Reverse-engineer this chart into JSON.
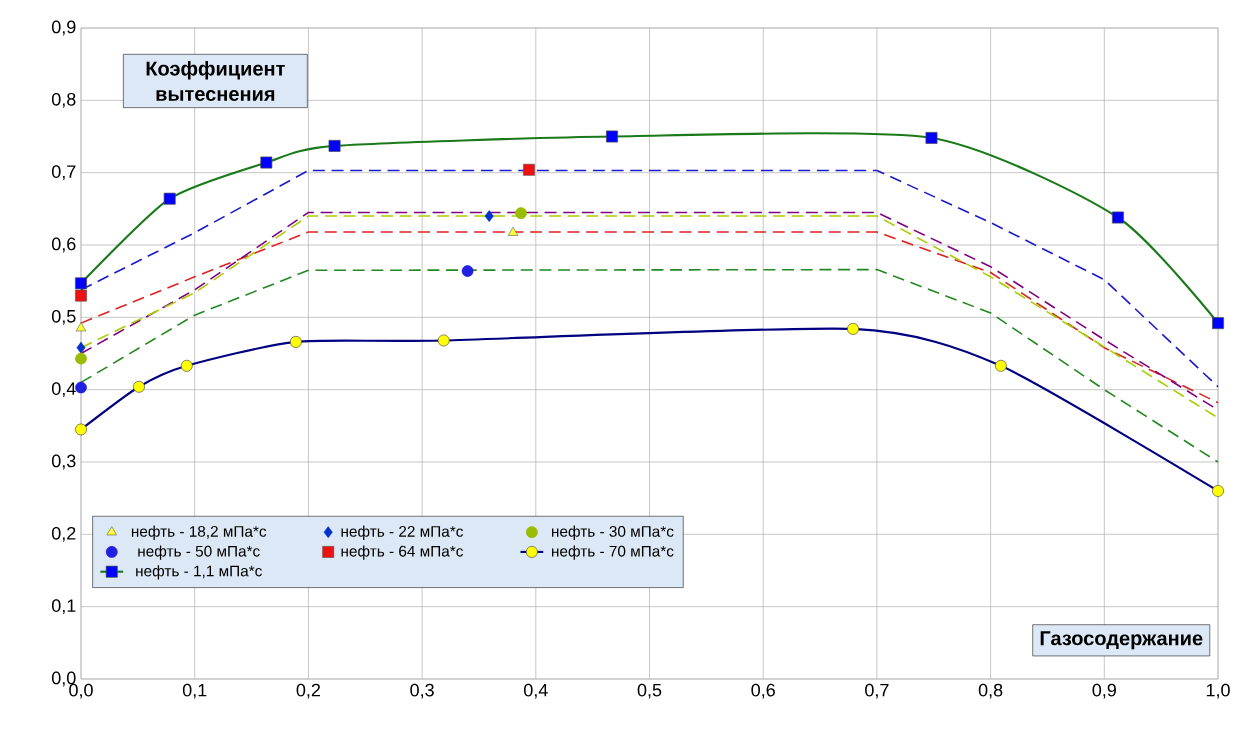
{
  "chart_data": {
    "type": "line",
    "xlabel": "Газосодержание",
    "ylabel": "Коэффициент вытеснения",
    "xlim": [
      0,
      1
    ],
    "ylim": [
      0,
      0.9
    ],
    "xticks": [
      {
        "value": 0,
        "label": "0,0"
      },
      {
        "value": 0.1,
        "label": "0,1"
      },
      {
        "value": 0.2,
        "label": "0,2"
      },
      {
        "value": 0.3,
        "label": "0,3"
      },
      {
        "value": 0.4,
        "label": "0,4"
      },
      {
        "value": 0.5,
        "label": "0,5"
      },
      {
        "value": 0.6,
        "label": "0,6"
      },
      {
        "value": 0.7,
        "label": "0,7"
      },
      {
        "value": 0.8,
        "label": "0,8"
      },
      {
        "value": 0.9,
        "label": "0,9"
      },
      {
        "value": 1,
        "label": "1,0"
      }
    ],
    "yticks": [
      {
        "value": 0,
        "label": "0,0"
      },
      {
        "value": 0.1,
        "label": "0,1"
      },
      {
        "value": 0.2,
        "label": "0,2"
      },
      {
        "value": 0.3,
        "label": "0,3"
      },
      {
        "value": 0.4,
        "label": "0,4"
      },
      {
        "value": 0.5,
        "label": "0,5"
      },
      {
        "value": 0.6,
        "label": "0,6"
      },
      {
        "value": 0.7,
        "label": "0,7"
      },
      {
        "value": 0.8,
        "label": "0,8"
      },
      {
        "value": 0.9,
        "label": "0,9"
      }
    ],
    "grid": true,
    "legend": "bottom",
    "series": [
      {
        "type": "line",
        "line_style": "dashed",
        "marker": "none",
        "color": "#1a1acc",
        "x": [
          0,
          0.1,
          0.2,
          0.7,
          0.8,
          0.9,
          1.0
        ],
        "values": [
          0.538,
          0.617,
          0.703,
          0.703,
          0.631,
          0.552,
          0.404
        ]
      },
      {
        "type": "line",
        "line_style": "dashed",
        "marker": "none",
        "color": "#dd2222",
        "x": [
          0,
          0.1,
          0.2,
          0.7,
          0.8,
          0.9,
          1.0
        ],
        "values": [
          0.492,
          0.556,
          0.618,
          0.618,
          0.562,
          0.458,
          0.382
        ]
      },
      {
        "type": "line",
        "line_style": "dashed",
        "marker": "none",
        "color": "#800080",
        "x": [
          0,
          0.1,
          0.2,
          0.7,
          0.8,
          0.9,
          1.0
        ],
        "values": [
          0.45,
          0.538,
          0.645,
          0.645,
          0.57,
          0.469,
          0.372
        ]
      },
      {
        "type": "line",
        "line_style": "dashed",
        "marker": "none",
        "color": "#aacc00",
        "x": [
          0,
          0.1,
          0.2,
          0.7,
          0.8,
          0.9,
          1.0
        ],
        "values": [
          0.458,
          0.534,
          0.64,
          0.64,
          0.556,
          0.459,
          0.361
        ]
      },
      {
        "type": "line",
        "line_style": "dashed",
        "marker": "none",
        "color": "#228822",
        "x": [
          0,
          0.1,
          0.2,
          0.7,
          0.8,
          0.9,
          1.0
        ],
        "values": [
          0.41,
          0.503,
          0.565,
          0.566,
          0.506,
          0.4,
          0.3
        ]
      },
      {
        "type": "scatter",
        "name": "нефть - 18,2 мПа*с",
        "marker": "triangle",
        "color": "#ffff33",
        "x": [
          0,
          0.38
        ],
        "values": [
          0.485,
          0.617
        ]
      },
      {
        "type": "scatter",
        "name": "нефть - 22 мПа*с",
        "marker": "diamond",
        "color": "#0033cc",
        "x": [
          0,
          0.359
        ],
        "values": [
          0.458,
          0.64
        ]
      },
      {
        "type": "scatter",
        "name": "нефть - 30 мПа*с",
        "marker": "circle",
        "color": "#99bb00",
        "x": [
          0,
          0.387
        ],
        "values": [
          0.443,
          0.644
        ]
      },
      {
        "type": "scatter",
        "name": "нефть - 50 мПа*с",
        "marker": "circle",
        "color": "#2020e0",
        "x": [
          0,
          0.34
        ],
        "values": [
          0.403,
          0.564
        ]
      },
      {
        "type": "scatter",
        "name": "нефть - 64 мПа*с",
        "marker": "square",
        "color": "#ee1111",
        "x": [
          0,
          0.394
        ],
        "values": [
          0.53,
          0.704
        ]
      },
      {
        "name": "нефть - 70 мПа*с",
        "line_style": "solid",
        "marker": "circle",
        "color": "#000080",
        "colors": [
          "#ffff00",
          "#ffff00",
          "#ffff00",
          "#ffff00",
          "#ffff00",
          "#ffff00",
          "#ffff00",
          "#ffff00"
        ],
        "x": [
          0,
          0.051,
          0.093,
          0.189,
          0.319,
          0.679,
          0.809,
          1.0
        ],
        "values": [
          0.345,
          0.404,
          0.433,
          0.466,
          0.468,
          0.484,
          0.433,
          0.26
        ]
      },
      {
        "name": "нефть - 1,1 мПа*с",
        "line_style": "solid",
        "marker": "square",
        "color": "#1a7a1a",
        "colors": [
          "#0000ff",
          "#0000ff",
          "#0000ff",
          "#0000ff",
          "#0000ff",
          "#0000ff",
          "#0000ff",
          "#0000ff"
        ],
        "x": [
          0,
          0.078,
          0.163,
          0.223,
          0.467,
          0.748,
          0.912,
          1.0
        ],
        "values": [
          0.547,
          0.664,
          0.714,
          0.737,
          0.75,
          0.748,
          0.638,
          0.492
        ]
      }
    ]
  }
}
